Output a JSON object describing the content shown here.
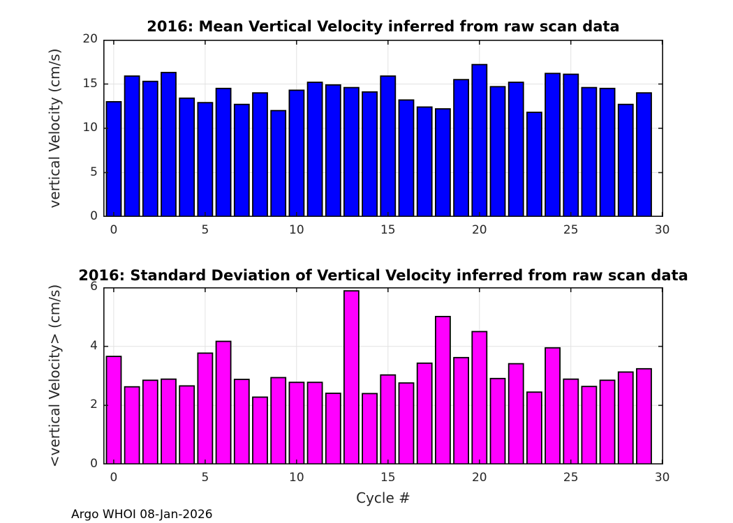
{
  "figure": {
    "footer": "Argo WHOI 08-Jan-2026"
  },
  "chart_data": [
    {
      "type": "bar",
      "title": "2016: Mean Vertical Velocity inferred from raw scan data",
      "ylabel": "vertical Velocity (cm/s)",
      "xlabel": "",
      "bar_color": "#0000ff",
      "bar_edge_color": "#000000",
      "grid": true,
      "bar_width": 0.8,
      "xlim": [
        -0.57,
        30.05
      ],
      "ylim": [
        0,
        20
      ],
      "xticks": [
        0,
        5,
        10,
        15,
        20,
        25,
        30
      ],
      "yticks": [
        0,
        5,
        10,
        15,
        20
      ],
      "x": [
        0,
        1,
        2,
        3,
        4,
        5,
        6,
        7,
        8,
        9,
        10,
        11,
        12,
        13,
        14,
        15,
        16,
        17,
        18,
        19,
        20,
        21,
        22,
        23,
        24,
        25,
        26,
        27,
        28,
        29
      ],
      "values": [
        13.0,
        15.9,
        15.3,
        16.3,
        13.4,
        12.9,
        14.5,
        12.7,
        14.0,
        12.0,
        14.3,
        15.2,
        14.9,
        14.6,
        14.1,
        15.9,
        13.2,
        12.4,
        12.2,
        15.5,
        17.2,
        14.7,
        15.2,
        11.8,
        16.2,
        16.1,
        14.6,
        14.5,
        12.7,
        14.0
      ]
    },
    {
      "type": "bar",
      "title": "2016: Standard Deviation of Vertical Velocity inferred from raw scan data",
      "ylabel": "<vertical Velocity> (cm/s)",
      "xlabel": "Cycle #",
      "bar_color": "#ff00ff",
      "bar_edge_color": "#000000",
      "grid": true,
      "bar_width": 0.8,
      "xlim": [
        -0.57,
        30.05
      ],
      "ylim": [
        0,
        6
      ],
      "xticks": [
        0,
        5,
        10,
        15,
        20,
        25,
        30
      ],
      "yticks": [
        0,
        2,
        4,
        6
      ],
      "x": [
        0,
        1,
        2,
        3,
        4,
        5,
        6,
        7,
        8,
        9,
        10,
        11,
        12,
        13,
        14,
        15,
        16,
        17,
        18,
        19,
        20,
        21,
        22,
        23,
        24,
        25,
        26,
        27,
        28,
        29
      ],
      "values": [
        3.66,
        2.63,
        2.85,
        2.89,
        2.66,
        3.77,
        4.17,
        2.88,
        2.28,
        2.94,
        2.78,
        2.78,
        2.41,
        5.88,
        2.4,
        3.03,
        2.76,
        3.43,
        5.01,
        3.62,
        4.5,
        2.91,
        3.41,
        2.45,
        3.95,
        2.89,
        2.64,
        2.85,
        3.13,
        3.24
      ]
    }
  ]
}
